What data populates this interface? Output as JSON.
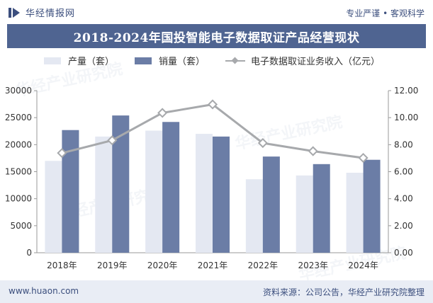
{
  "header": {
    "logo_text": "华经情报网",
    "tagline": "专业严谨 • 客观科学"
  },
  "title": "2018-2024年国投智能电子数据取证产品经营现状",
  "legend": {
    "production": "产量（套）",
    "sales": "销量（套）",
    "revenue": "电子数据取证业务收入（亿元）"
  },
  "watermark": "华经产业研究院",
  "footer": {
    "site": "www.huaon.com",
    "source": "资料来源：公司公告，华经产业研究院整理"
  },
  "colors": {
    "production": "#e4e8f2",
    "sales": "#6b7da6",
    "revenue": "#a7a9ac",
    "title_bg": "#4f6491",
    "accent": "#3b4e7d"
  },
  "chart_data": {
    "type": "bar",
    "categories": [
      "2018年",
      "2019年",
      "2020年",
      "2021年",
      "2022年",
      "2023年",
      "2024年"
    ],
    "series": [
      {
        "name": "产量（套）",
        "type": "bar",
        "axis": "left",
        "values": [
          17000,
          21500,
          22600,
          22000,
          13600,
          14300,
          14800
        ]
      },
      {
        "name": "销量（套）",
        "type": "bar",
        "axis": "left",
        "values": [
          22700,
          25400,
          24200,
          21500,
          17800,
          16400,
          17200
        ]
      },
      {
        "name": "电子数据取证业务收入（亿元）",
        "type": "line",
        "axis": "right",
        "values": [
          7.38,
          8.32,
          10.35,
          10.98,
          8.12,
          7.52,
          7.02
        ]
      }
    ],
    "y_left": {
      "min": 0,
      "max": 30000,
      "ticks": [
        "0",
        "5000",
        "10000",
        "15000",
        "20000",
        "25000",
        "30000"
      ]
    },
    "y_right": {
      "min": 0,
      "max": 12,
      "ticks": [
        "0.00",
        "2.00",
        "4.00",
        "6.00",
        "8.00",
        "10.00",
        "12.00"
      ]
    },
    "grid": false,
    "legend_position": "top"
  }
}
